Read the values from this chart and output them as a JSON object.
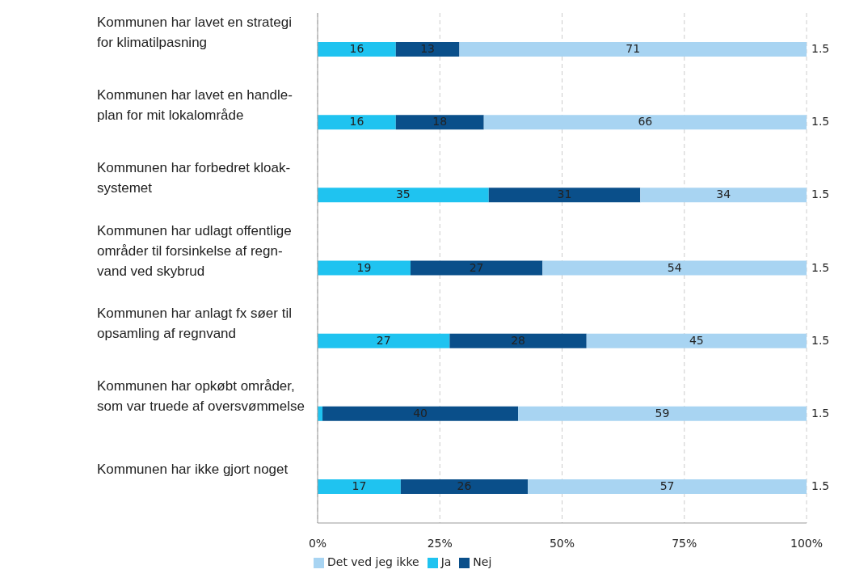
{
  "chart_data": {
    "type": "bar",
    "orientation": "horizontal",
    "stacked": true,
    "categories": [
      "Kommunen har lavet en strategi\nfor klimatilpasning",
      "Kommunen har lavet en handle-\nplan for mit lokalområde",
      "Kommunen har forbedret kloak-\nsystemet",
      "Kommunen har udlagt offentlige\nområder til forsinkelse af regn-\nvand ved skybrud",
      "Kommunen har anlagt fx søer til\nopsamling af regnvand",
      "Kommunen har opkøbt områder,\nsom var truede af oversvømmelse",
      "Kommunen har ikke gjort noget"
    ],
    "series": [
      {
        "name": "Ja",
        "color": "#1fc3f0",
        "values": [
          16,
          16,
          35,
          19,
          27,
          1,
          17
        ],
        "value_labels": [
          "16",
          "16",
          "35",
          "19",
          "27",
          null,
          "17"
        ]
      },
      {
        "name": "Nej",
        "color": "#0a4f8a",
        "values": [
          13,
          18,
          31,
          27,
          28,
          40,
          26
        ],
        "value_labels": [
          "13",
          "18",
          "31",
          "27",
          "28",
          "40",
          "26"
        ]
      },
      {
        "name": "Det ved jeg ikke",
        "color": "#a8d4f2",
        "values": [
          71,
          66,
          34,
          54,
          45,
          59,
          57
        ],
        "value_labels": [
          "71",
          "66",
          "34",
          "54",
          "45",
          "59",
          "57"
        ]
      }
    ],
    "xlim": [
      0,
      100
    ],
    "xticks": [
      {
        "value": 0,
        "label": "0%"
      },
      {
        "value": 25,
        "label": "25%"
      },
      {
        "value": 50,
        "label": "50%"
      },
      {
        "value": 75,
        "label": "75%"
      },
      {
        "value": 100,
        "label": "100%"
      }
    ],
    "grid": "x",
    "legend": "bottom left",
    "annotations": [
      "1.5",
      "1.5",
      "1.5",
      "1.5",
      "1.5",
      "1.5",
      "1.5"
    ]
  }
}
